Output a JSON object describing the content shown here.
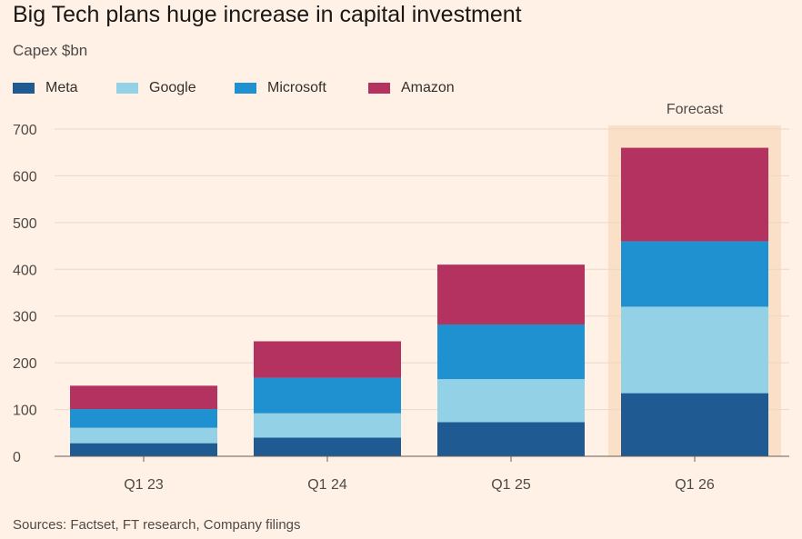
{
  "chart_data": {
    "type": "bar",
    "stacked": true,
    "title": "Big Tech plans huge increase in capital investment",
    "subtitle": "Capex $bn",
    "categories": [
      "Q1 23",
      "Q1 24",
      "Q1 25",
      "Q1 26"
    ],
    "series": [
      {
        "name": "Meta",
        "color": "#1f5a92",
        "values": [
          28,
          40,
          73,
          135
        ]
      },
      {
        "name": "Google",
        "color": "#93d2e6",
        "values": [
          33,
          52,
          92,
          185
        ]
      },
      {
        "name": "Microsoft",
        "color": "#1f90d0",
        "values": [
          40,
          76,
          117,
          140
        ]
      },
      {
        "name": "Amazon",
        "color": "#b4325f",
        "values": [
          50,
          78,
          128,
          200
        ]
      }
    ],
    "ylim": [
      0,
      700
    ],
    "yticks": [
      0,
      100,
      200,
      300,
      400,
      500,
      600,
      700
    ],
    "xlabel": "",
    "ylabel": "",
    "grid": true,
    "legend_position": "top-left",
    "forecast": {
      "label": "Forecast",
      "category": "Q1 26",
      "shade_color": "#fbe0c8"
    },
    "source": "Sources: Factset, FT research, Company filings"
  }
}
